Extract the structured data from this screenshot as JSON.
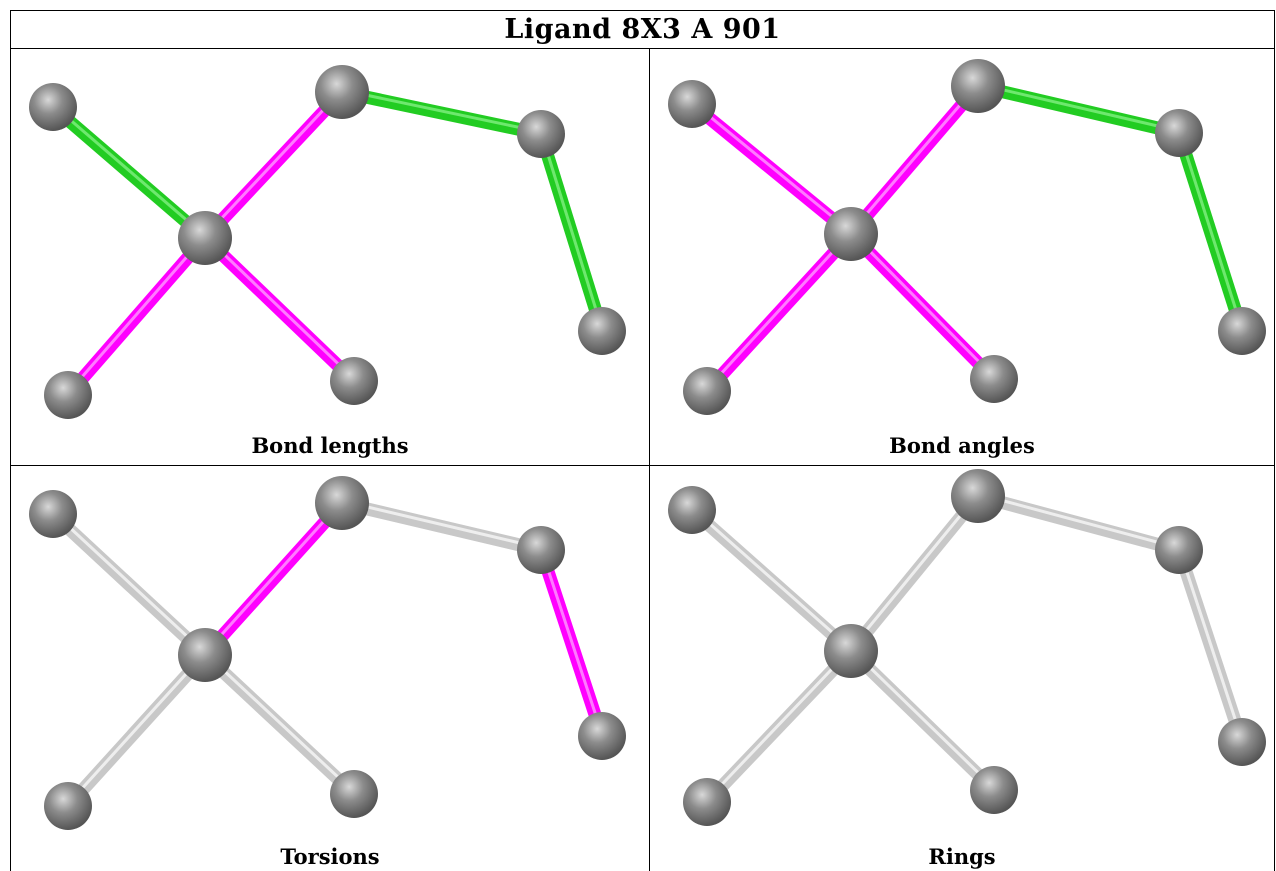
{
  "title": "Ligand 8X3 A 901",
  "colors": {
    "outlier_bond": "#ff00ff",
    "ok_bond": "#22cc22",
    "neutral_bond": "#cccccc",
    "atom": "#808080"
  },
  "panels": [
    {
      "caption": "Bond lengths",
      "bonds": [
        "green",
        "green",
        "magenta",
        "magenta",
        "magenta",
        "green",
        "green"
      ]
    },
    {
      "caption": "Bond angles",
      "bonds": [
        "magenta",
        "green",
        "magenta",
        "magenta",
        "magenta",
        "green",
        "green"
      ]
    },
    {
      "caption": "Torsions",
      "bonds": [
        "gray",
        "gray",
        "magenta",
        "gray",
        "gray",
        "magenta",
        "gray"
      ]
    },
    {
      "caption": "Rings",
      "bonds": [
        "gray",
        "gray",
        "gray",
        "gray",
        "gray",
        "gray",
        "gray"
      ]
    }
  ]
}
